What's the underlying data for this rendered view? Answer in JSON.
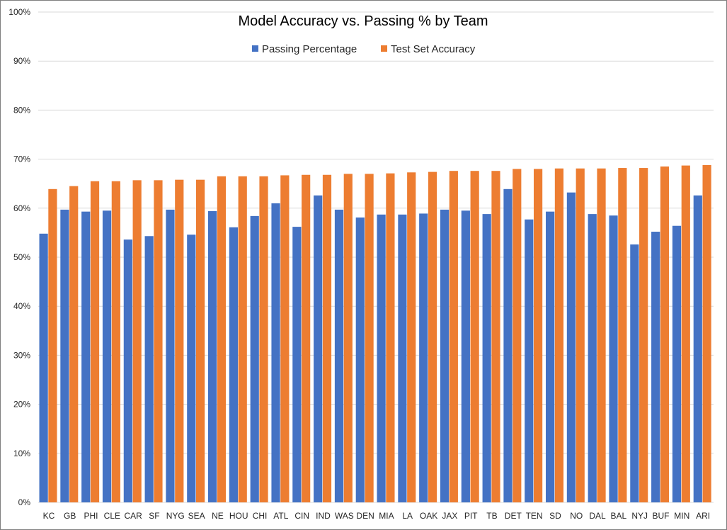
{
  "chart_data": {
    "type": "bar",
    "title": "Model Accuracy vs. Passing % by Team",
    "xlabel": "",
    "ylabel": "",
    "ylim": [
      0,
      100
    ],
    "y_tick_labels": [
      "0%",
      "10%",
      "20%",
      "30%",
      "40%",
      "50%",
      "60%",
      "70%",
      "80%",
      "90%",
      "100%"
    ],
    "grid": true,
    "legend_position": "top",
    "categories": [
      "KC",
      "GB",
      "PHI",
      "CLE",
      "CAR",
      "SF",
      "NYG",
      "SEA",
      "NE",
      "HOU",
      "CHI",
      "ATL",
      "CIN",
      "IND",
      "WAS",
      "DEN",
      "MIA",
      "LA",
      "OAK",
      "JAX",
      "PIT",
      "TB",
      "DET",
      "TEN",
      "SD",
      "NO",
      "DAL",
      "BAL",
      "NYJ",
      "BUF",
      "MIN",
      "ARI"
    ],
    "series": [
      {
        "name": "Passing Percentage",
        "color": "#4472c4",
        "values": [
          54.8,
          59.7,
          59.3,
          59.5,
          53.6,
          54.3,
          59.7,
          54.6,
          59.4,
          56.1,
          58.4,
          61.0,
          56.2,
          62.6,
          59.7,
          58.1,
          58.7,
          58.7,
          58.9,
          59.7,
          59.5,
          58.8,
          63.9,
          57.7,
          59.3,
          63.2,
          58.8,
          58.5,
          52.6,
          55.2,
          56.4,
          62.6
        ]
      },
      {
        "name": "Test Set Accuracy",
        "color": "#ed7d31",
        "values": [
          63.9,
          64.5,
          65.5,
          65.5,
          65.7,
          65.7,
          65.8,
          65.8,
          66.5,
          66.5,
          66.5,
          66.7,
          66.8,
          66.8,
          67.0,
          67.0,
          67.1,
          67.3,
          67.4,
          67.6,
          67.6,
          67.6,
          68.0,
          68.0,
          68.1,
          68.1,
          68.1,
          68.2,
          68.2,
          68.5,
          68.7,
          68.8
        ]
      }
    ]
  }
}
